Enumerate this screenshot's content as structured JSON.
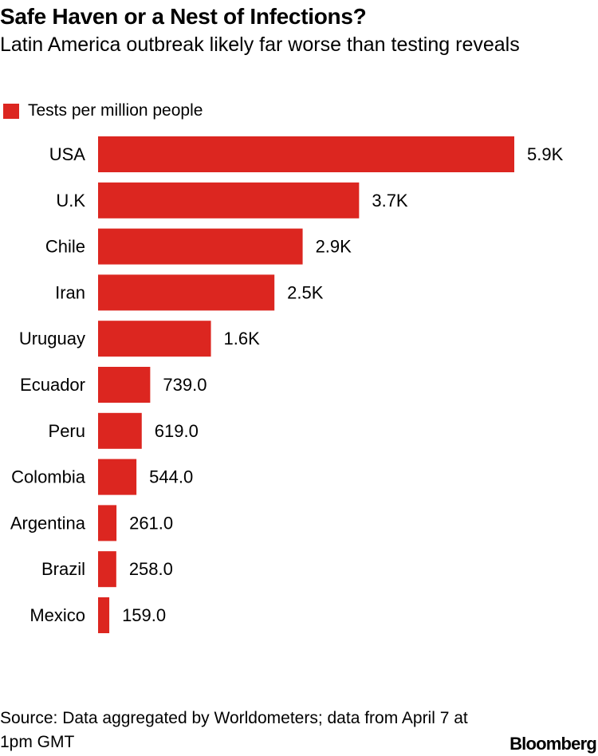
{
  "title": "Safe Haven or a Nest of Infections?",
  "subtitle": "Latin America outbreak likely far worse than testing reveals",
  "legend": {
    "label": "Tests per million people"
  },
  "source": "Source: Data aggregated by Worldometers; data from April 7 at 1pm GMT",
  "brand": "Bloomberg",
  "colors": {
    "bar": "#dc2620",
    "text": "#000000",
    "background": "#ffffff"
  },
  "chart_data": {
    "type": "bar",
    "orientation": "horizontal",
    "categories": [
      "USA",
      "U.K",
      "Chile",
      "Iran",
      "Uruguay",
      "Ecuador",
      "Peru",
      "Colombia",
      "Argentina",
      "Brazil",
      "Mexico"
    ],
    "series": [
      {
        "name": "Tests per million people",
        "values": [
          5900,
          3700,
          2900,
          2500,
          1600,
          739.0,
          619.0,
          544.0,
          261.0,
          258.0,
          159.0
        ],
        "labels": [
          "5.9K",
          "3.7K",
          "2.9K",
          "2.5K",
          "1.6K",
          "739.0",
          "619.0",
          "544.0",
          "261.0",
          "258.0",
          "159.0"
        ]
      }
    ],
    "grid": false,
    "legend_position": "top-left"
  }
}
